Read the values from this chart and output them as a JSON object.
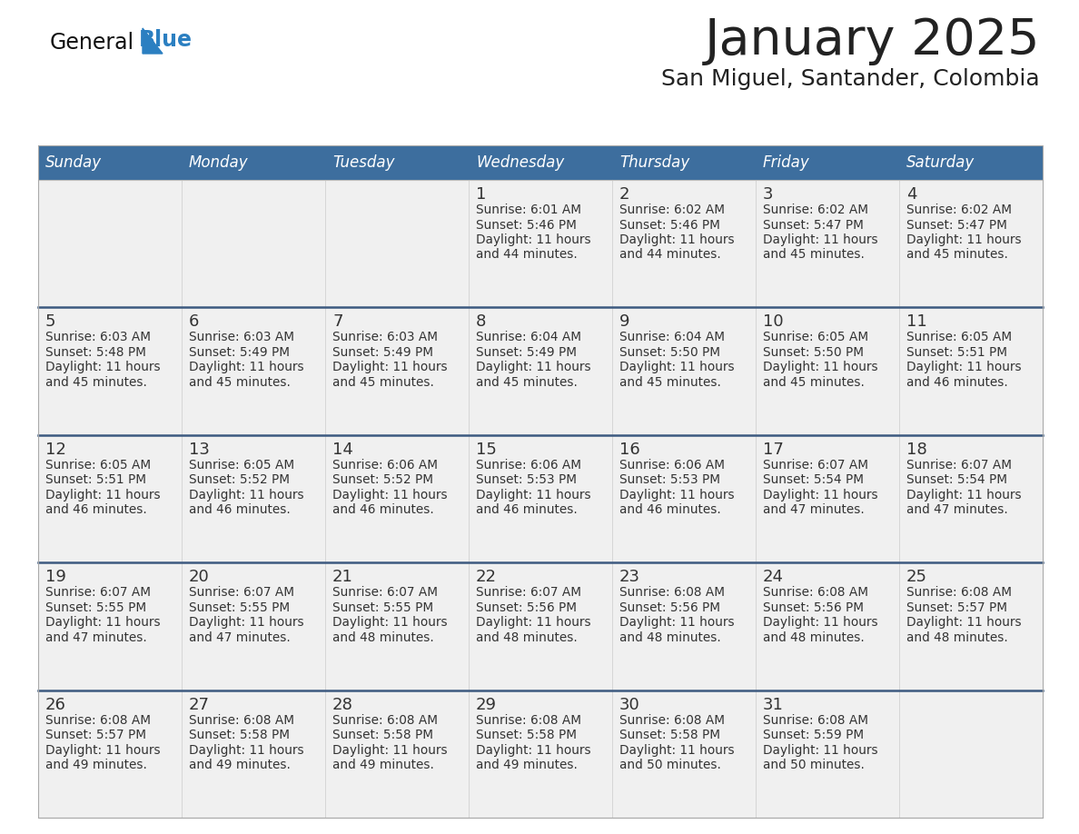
{
  "title": "January 2025",
  "subtitle": "San Miguel, Santander, Colombia",
  "days_of_week": [
    "Sunday",
    "Monday",
    "Tuesday",
    "Wednesday",
    "Thursday",
    "Friday",
    "Saturday"
  ],
  "header_bg": "#3d6e9e",
  "header_text_color": "#ffffff",
  "cell_bg": "#f0f0f0",
  "row_line_color": "#3d5a80",
  "text_color": "#333333",
  "title_color": "#222222",
  "calendar_data": [
    [
      null,
      null,
      null,
      {
        "day": 1,
        "sunrise": "6:01 AM",
        "sunset": "5:46 PM",
        "daylight_min": "44"
      },
      {
        "day": 2,
        "sunrise": "6:02 AM",
        "sunset": "5:46 PM",
        "daylight_min": "44"
      },
      {
        "day": 3,
        "sunrise": "6:02 AM",
        "sunset": "5:47 PM",
        "daylight_min": "45"
      },
      {
        "day": 4,
        "sunrise": "6:02 AM",
        "sunset": "5:47 PM",
        "daylight_min": "45"
      }
    ],
    [
      {
        "day": 5,
        "sunrise": "6:03 AM",
        "sunset": "5:48 PM",
        "daylight_min": "45"
      },
      {
        "day": 6,
        "sunrise": "6:03 AM",
        "sunset": "5:49 PM",
        "daylight_min": "45"
      },
      {
        "day": 7,
        "sunrise": "6:03 AM",
        "sunset": "5:49 PM",
        "daylight_min": "45"
      },
      {
        "day": 8,
        "sunrise": "6:04 AM",
        "sunset": "5:49 PM",
        "daylight_min": "45"
      },
      {
        "day": 9,
        "sunrise": "6:04 AM",
        "sunset": "5:50 PM",
        "daylight_min": "45"
      },
      {
        "day": 10,
        "sunrise": "6:05 AM",
        "sunset": "5:50 PM",
        "daylight_min": "45"
      },
      {
        "day": 11,
        "sunrise": "6:05 AM",
        "sunset": "5:51 PM",
        "daylight_min": "46"
      }
    ],
    [
      {
        "day": 12,
        "sunrise": "6:05 AM",
        "sunset": "5:51 PM",
        "daylight_min": "46"
      },
      {
        "day": 13,
        "sunrise": "6:05 AM",
        "sunset": "5:52 PM",
        "daylight_min": "46"
      },
      {
        "day": 14,
        "sunrise": "6:06 AM",
        "sunset": "5:52 PM",
        "daylight_min": "46"
      },
      {
        "day": 15,
        "sunrise": "6:06 AM",
        "sunset": "5:53 PM",
        "daylight_min": "46"
      },
      {
        "day": 16,
        "sunrise": "6:06 AM",
        "sunset": "5:53 PM",
        "daylight_min": "46"
      },
      {
        "day": 17,
        "sunrise": "6:07 AM",
        "sunset": "5:54 PM",
        "daylight_min": "47"
      },
      {
        "day": 18,
        "sunrise": "6:07 AM",
        "sunset": "5:54 PM",
        "daylight_min": "47"
      }
    ],
    [
      {
        "day": 19,
        "sunrise": "6:07 AM",
        "sunset": "5:55 PM",
        "daylight_min": "47"
      },
      {
        "day": 20,
        "sunrise": "6:07 AM",
        "sunset": "5:55 PM",
        "daylight_min": "47"
      },
      {
        "day": 21,
        "sunrise": "6:07 AM",
        "sunset": "5:55 PM",
        "daylight_min": "48"
      },
      {
        "day": 22,
        "sunrise": "6:07 AM",
        "sunset": "5:56 PM",
        "daylight_min": "48"
      },
      {
        "day": 23,
        "sunrise": "6:08 AM",
        "sunset": "5:56 PM",
        "daylight_min": "48"
      },
      {
        "day": 24,
        "sunrise": "6:08 AM",
        "sunset": "5:56 PM",
        "daylight_min": "48"
      },
      {
        "day": 25,
        "sunrise": "6:08 AM",
        "sunset": "5:57 PM",
        "daylight_min": "48"
      }
    ],
    [
      {
        "day": 26,
        "sunrise": "6:08 AM",
        "sunset": "5:57 PM",
        "daylight_min": "49"
      },
      {
        "day": 27,
        "sunrise": "6:08 AM",
        "sunset": "5:58 PM",
        "daylight_min": "49"
      },
      {
        "day": 28,
        "sunrise": "6:08 AM",
        "sunset": "5:58 PM",
        "daylight_min": "49"
      },
      {
        "day": 29,
        "sunrise": "6:08 AM",
        "sunset": "5:58 PM",
        "daylight_min": "49"
      },
      {
        "day": 30,
        "sunrise": "6:08 AM",
        "sunset": "5:58 PM",
        "daylight_min": "50"
      },
      {
        "day": 31,
        "sunrise": "6:08 AM",
        "sunset": "5:59 PM",
        "daylight_min": "50"
      },
      null
    ]
  ]
}
